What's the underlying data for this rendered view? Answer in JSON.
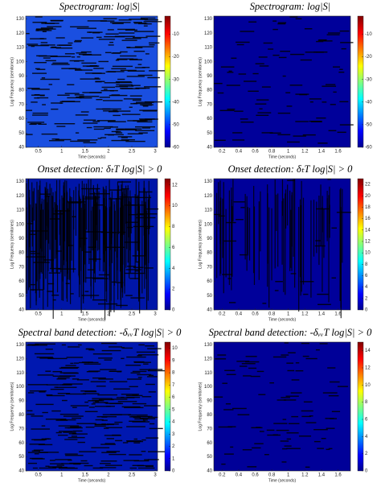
{
  "figure": {
    "panels": [
      {
        "title": "Spectrogram: log|S|",
        "xlabel": "Time (seconds)",
        "ylabel": "Log Frequency (semitones)",
        "xticks": [
          0.5,
          1,
          1.5,
          2,
          2.5,
          3
        ],
        "xlim": [
          0.23,
          3.05
        ],
        "yticks": [
          40,
          50,
          60,
          70,
          80,
          90,
          100,
          110,
          120,
          130
        ],
        "ylim": [
          40,
          132
        ],
        "cticks": [
          -10,
          -20,
          -30,
          -40,
          -50,
          -60
        ],
        "clim": [
          -60,
          -2
        ]
      },
      {
        "title": "Spectrogram: log|S|",
        "xlabel": "Time (seconds)",
        "ylabel": "Log Frequency (semitones)",
        "xticks": [
          0.2,
          0.4,
          0.6,
          0.8,
          1,
          1.2,
          1.4,
          1.6
        ],
        "xlim": [
          0.1,
          1.75
        ],
        "yticks": [
          40,
          50,
          60,
          70,
          80,
          90,
          100,
          110,
          120,
          130
        ],
        "ylim": [
          40,
          132
        ],
        "cticks": [
          -10,
          -20,
          -30,
          -40,
          -50,
          -60
        ],
        "clim": [
          -60,
          -2
        ]
      },
      {
        "title": "Onset detection: δₜT log|S| > 0",
        "xlabel": "Time (seconds)",
        "ylabel": "Log Frequency (semitones)",
        "xticks": [
          0.5,
          1,
          1.5,
          2,
          2.5,
          3
        ],
        "xlim": [
          0.23,
          3.05
        ],
        "yticks": [
          40,
          50,
          60,
          70,
          80,
          90,
          100,
          110,
          120,
          130
        ],
        "ylim": [
          40,
          132
        ],
        "cticks": [
          0,
          2,
          4,
          6,
          8,
          10,
          12
        ],
        "clim": [
          0,
          12.6
        ]
      },
      {
        "title": "Onset detection: δₜT log|S| > 0",
        "xlabel": "Time (seconds)",
        "ylabel": "Log Frequency (semitones)",
        "xticks": [
          0.2,
          0.4,
          0.6,
          0.8,
          1,
          1.2,
          1.4,
          1.6
        ],
        "xlim": [
          0.1,
          1.75
        ],
        "yticks": [
          40,
          50,
          60,
          70,
          80,
          90,
          100,
          110,
          120,
          130
        ],
        "ylim": [
          40,
          132
        ],
        "cticks": [
          0,
          2,
          4,
          6,
          8,
          10,
          12,
          14,
          16,
          18,
          20,
          22
        ],
        "clim": [
          0,
          23
        ]
      },
      {
        "title": "Spectral band detection: -δᵥᵥT log|S| > 0",
        "xlabel": "Time (seconds)",
        "ylabel": "Log Frequency (semitones)",
        "xticks": [
          0.5,
          1,
          1.5,
          2,
          2.5,
          3
        ],
        "xlim": [
          0.23,
          3.05
        ],
        "yticks": [
          40,
          50,
          60,
          70,
          80,
          90,
          100,
          110,
          120,
          130
        ],
        "ylim": [
          40,
          132
        ],
        "cticks": [
          0,
          1,
          2,
          3,
          4,
          5,
          6,
          7,
          8,
          9,
          10
        ],
        "clim": [
          0,
          10.5
        ]
      },
      {
        "title": "Spectral band detection: -δᵥᵥT log|S| > 0",
        "xlabel": "Time (seconds)",
        "ylabel": "Log Frequency (semitones)",
        "xticks": [
          0.2,
          0.4,
          0.6,
          0.8,
          1,
          1.2,
          1.4,
          1.6
        ],
        "xlim": [
          0.1,
          1.75
        ],
        "yticks": [
          40,
          50,
          60,
          70,
          80,
          90,
          100,
          110,
          120,
          130
        ],
        "ylim": [
          40,
          132
        ],
        "cticks": [
          0,
          2,
          4,
          6,
          8,
          10,
          12,
          14
        ],
        "clim": [
          0,
          15
        ]
      }
    ]
  }
}
